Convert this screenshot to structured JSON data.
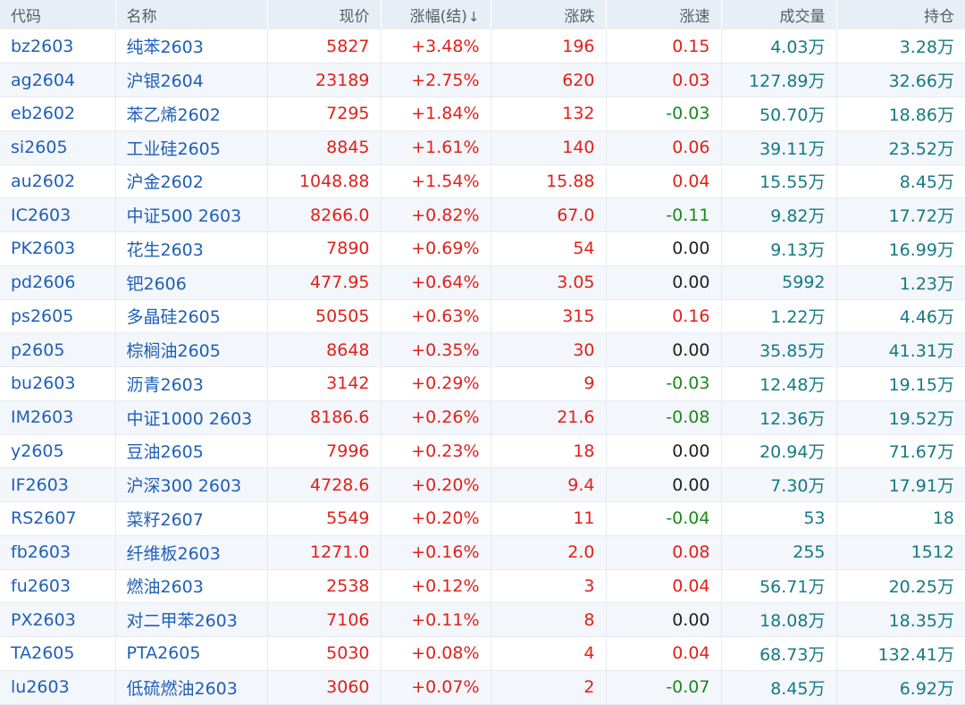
{
  "headers": {
    "code": "代码",
    "name": "名称",
    "price": "现价",
    "change_pct": "涨幅(结)",
    "change_pct_sort": "↓",
    "change": "涨跌",
    "speed": "涨速",
    "volume": "成交量",
    "open_interest": "持仓"
  },
  "colors": {
    "up": "#e0211b",
    "down": "#1a8a1a",
    "flat": "#222222",
    "link": "#1f5fb8",
    "volume": "#147a85",
    "header_bg": "#e8eef6"
  },
  "rows": [
    {
      "code": "bz2603",
      "name": "纯苯2603",
      "price": "5827",
      "pct": "+3.48%",
      "chg": "196",
      "spd": "0.15",
      "spd_dir": "up",
      "vol": "4.03万",
      "oi": "3.28万"
    },
    {
      "code": "ag2604",
      "name": "沪银2604",
      "price": "23189",
      "pct": "+2.75%",
      "chg": "620",
      "spd": "0.03",
      "spd_dir": "up",
      "vol": "127.89万",
      "oi": "32.66万"
    },
    {
      "code": "eb2602",
      "name": "苯乙烯2602",
      "price": "7295",
      "pct": "+1.84%",
      "chg": "132",
      "spd": "-0.03",
      "spd_dir": "down",
      "vol": "50.70万",
      "oi": "18.86万"
    },
    {
      "code": "si2605",
      "name": "工业硅2605",
      "price": "8845",
      "pct": "+1.61%",
      "chg": "140",
      "spd": "0.06",
      "spd_dir": "up",
      "vol": "39.11万",
      "oi": "23.52万"
    },
    {
      "code": "au2602",
      "name": "沪金2602",
      "price": "1048.88",
      "pct": "+1.54%",
      "chg": "15.88",
      "spd": "0.04",
      "spd_dir": "up",
      "vol": "15.55万",
      "oi": "8.45万"
    },
    {
      "code": "IC2603",
      "name": "中证500 2603",
      "price": "8266.0",
      "pct": "+0.82%",
      "chg": "67.0",
      "spd": "-0.11",
      "spd_dir": "down",
      "vol": "9.82万",
      "oi": "17.72万"
    },
    {
      "code": "PK2603",
      "name": "花生2603",
      "price": "7890",
      "pct": "+0.69%",
      "chg": "54",
      "spd": "0.00",
      "spd_dir": "flat",
      "vol": "9.13万",
      "oi": "16.99万"
    },
    {
      "code": "pd2606",
      "name": "钯2606",
      "price": "477.95",
      "pct": "+0.64%",
      "chg": "3.05",
      "spd": "0.00",
      "spd_dir": "flat",
      "vol": "5992",
      "oi": "1.23万"
    },
    {
      "code": "ps2605",
      "name": "多晶硅2605",
      "price": "50505",
      "pct": "+0.63%",
      "chg": "315",
      "spd": "0.16",
      "spd_dir": "up",
      "vol": "1.22万",
      "oi": "4.46万"
    },
    {
      "code": "p2605",
      "name": "棕榈油2605",
      "price": "8648",
      "pct": "+0.35%",
      "chg": "30",
      "spd": "0.00",
      "spd_dir": "flat",
      "vol": "35.85万",
      "oi": "41.31万"
    },
    {
      "code": "bu2603",
      "name": "沥青2603",
      "price": "3142",
      "pct": "+0.29%",
      "chg": "9",
      "spd": "-0.03",
      "spd_dir": "down",
      "vol": "12.48万",
      "oi": "19.15万"
    },
    {
      "code": "IM2603",
      "name": "中证1000 2603",
      "price": "8186.6",
      "pct": "+0.26%",
      "chg": "21.6",
      "spd": "-0.08",
      "spd_dir": "down",
      "vol": "12.36万",
      "oi": "19.52万"
    },
    {
      "code": "y2605",
      "name": "豆油2605",
      "price": "7996",
      "pct": "+0.23%",
      "chg": "18",
      "spd": "0.00",
      "spd_dir": "flat",
      "vol": "20.94万",
      "oi": "71.67万"
    },
    {
      "code": "IF2603",
      "name": "沪深300 2603",
      "price": "4728.6",
      "pct": "+0.20%",
      "chg": "9.4",
      "spd": "0.00",
      "spd_dir": "flat",
      "vol": "7.30万",
      "oi": "17.91万"
    },
    {
      "code": "RS2607",
      "name": "菜籽2607",
      "price": "5549",
      "pct": "+0.20%",
      "chg": "11",
      "spd": "-0.04",
      "spd_dir": "down",
      "vol": "53",
      "oi": "18"
    },
    {
      "code": "fb2603",
      "name": "纤维板2603",
      "price": "1271.0",
      "pct": "+0.16%",
      "chg": "2.0",
      "spd": "0.08",
      "spd_dir": "up",
      "vol": "255",
      "oi": "1512"
    },
    {
      "code": "fu2603",
      "name": "燃油2603",
      "price": "2538",
      "pct": "+0.12%",
      "chg": "3",
      "spd": "0.04",
      "spd_dir": "up",
      "vol": "56.71万",
      "oi": "20.25万"
    },
    {
      "code": "PX2603",
      "name": "对二甲苯2603",
      "price": "7106",
      "pct": "+0.11%",
      "chg": "8",
      "spd": "0.00",
      "spd_dir": "flat",
      "vol": "18.08万",
      "oi": "18.35万"
    },
    {
      "code": "TA2605",
      "name": "PTA2605",
      "price": "5030",
      "pct": "+0.08%",
      "chg": "4",
      "spd": "0.04",
      "spd_dir": "up",
      "vol": "68.73万",
      "oi": "132.41万"
    },
    {
      "code": "lu2603",
      "name": "低硫燃油2603",
      "price": "3060",
      "pct": "+0.07%",
      "chg": "2",
      "spd": "-0.07",
      "spd_dir": "down",
      "vol": "8.45万",
      "oi": "6.92万"
    }
  ]
}
